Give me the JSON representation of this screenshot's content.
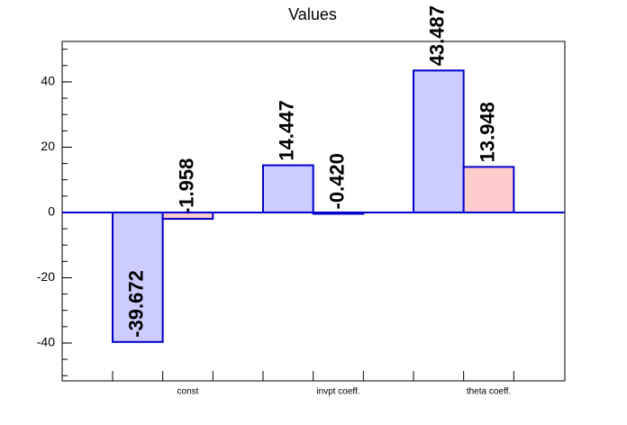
{
  "chart_data": {
    "type": "bar",
    "title": "Values",
    "categories": [
      "const",
      "invpt coeff.",
      "theta coeff."
    ],
    "series": [
      {
        "color": "#ccccff",
        "values": [
          -39.672,
          14.447,
          43.487
        ],
        "value_labels": [
          "-39.672",
          "14.447",
          "43.487"
        ]
      },
      {
        "color": "#ffcccc",
        "values": [
          -1.958,
          -0.42,
          13.948
        ],
        "value_labels": [
          "-1.958",
          "-0.420",
          "13.948"
        ]
      }
    ],
    "edge_color": "#0000cc",
    "ylim": [
      -51.6,
      52.4
    ],
    "yticks": [
      -40,
      -20,
      0,
      20,
      40
    ],
    "grid": false
  }
}
